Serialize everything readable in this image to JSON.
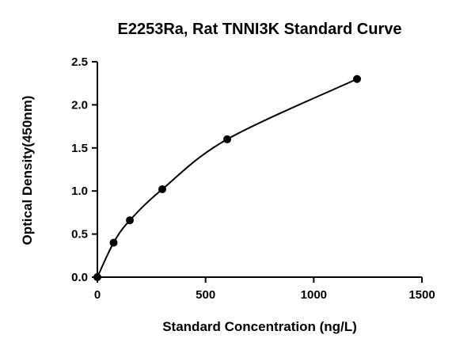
{
  "chart_data": {
    "type": "scatter",
    "title": "E2253Ra, Rat TNNI3K Standard Curve",
    "xlabel": "Standard Concentration (ng/L)",
    "ylabel": "Optical Density(450nm)",
    "xlim": [
      0,
      1500
    ],
    "ylim": [
      0,
      2.5
    ],
    "xticks": [
      0,
      500,
      1000,
      1500
    ],
    "xtick_labels": [
      "0",
      "500",
      "1000",
      "1500"
    ],
    "yticks": [
      0,
      0.5,
      1.0,
      1.5,
      2.0,
      2.5
    ],
    "ytick_labels": [
      "0.0",
      "0.5",
      "1.0",
      "1.5",
      "2.0",
      "2.5"
    ],
    "grid": false,
    "series": [
      {
        "x": [
          0,
          75,
          150,
          300,
          600,
          1200
        ],
        "y": [
          0.0,
          0.4,
          0.66,
          1.02,
          1.6,
          2.3
        ],
        "fit": "smooth-curve",
        "marker": "circle",
        "color": "#000000"
      }
    ]
  }
}
